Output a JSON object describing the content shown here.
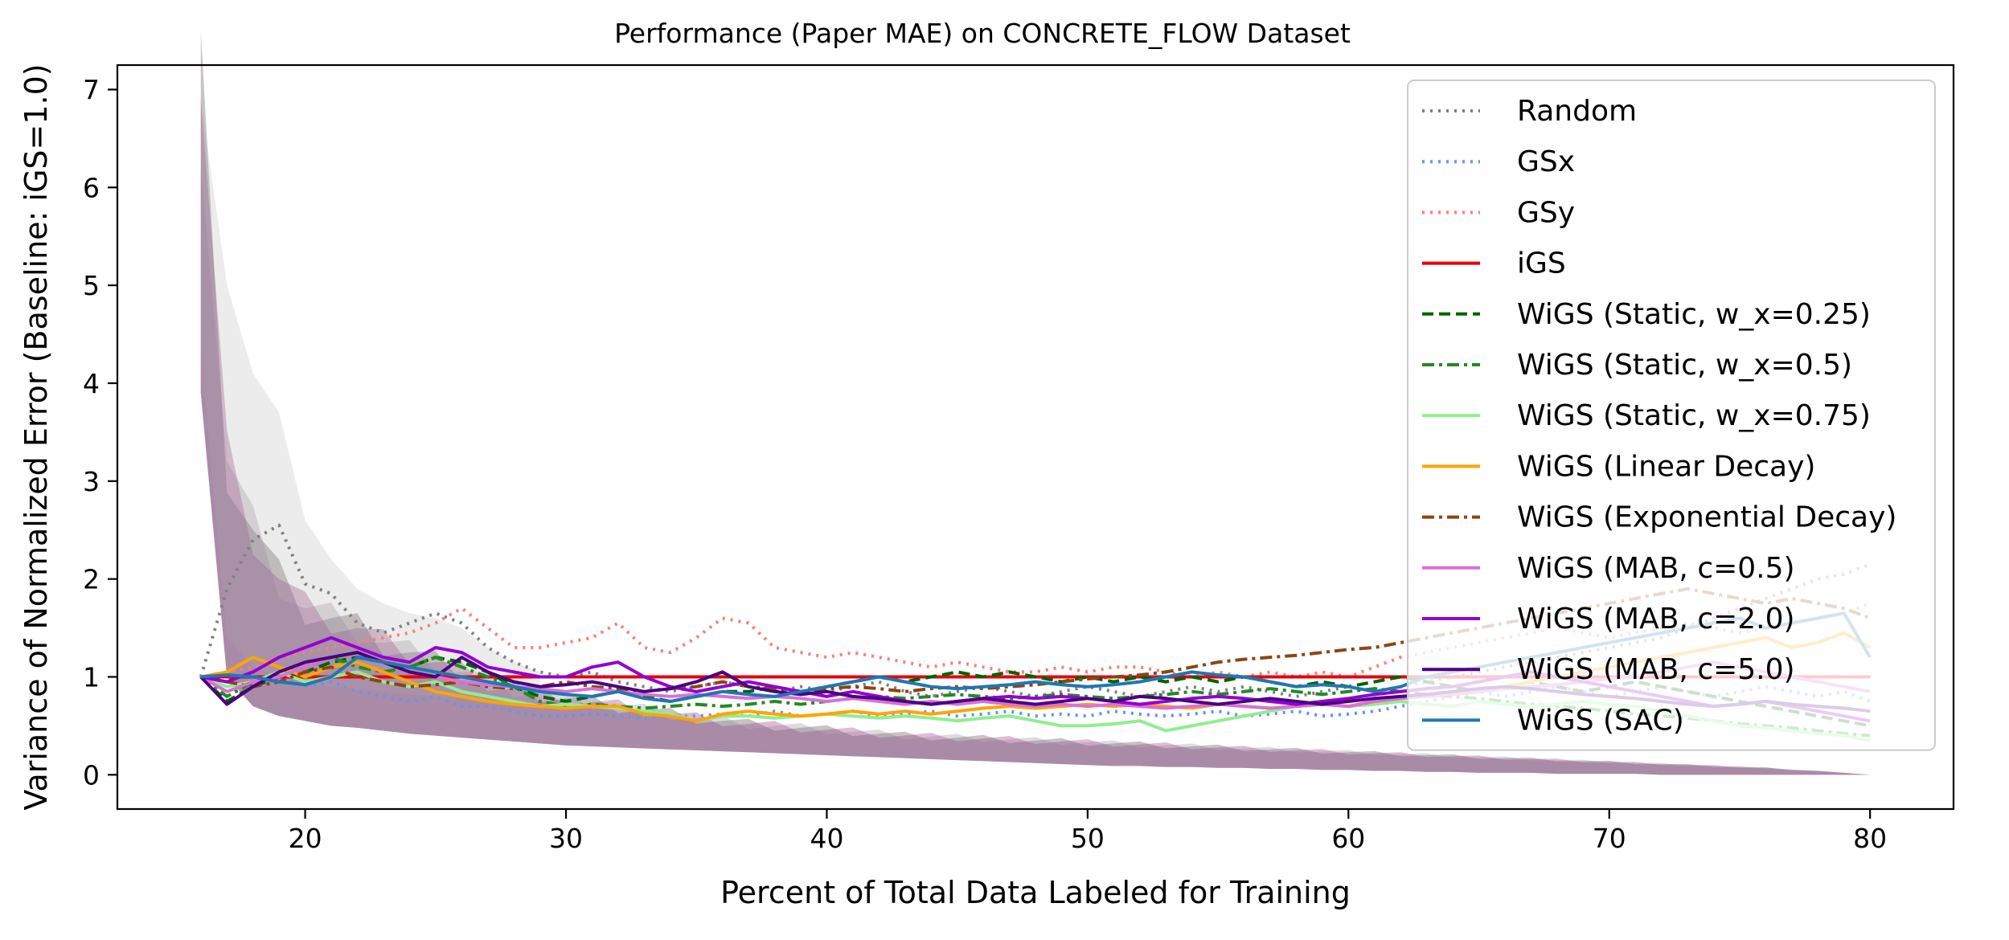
{
  "chart_data": {
    "type": "line",
    "title": "Performance (Paper MAE) on CONCRETE_FLOW Dataset",
    "xlabel": "Percent of Total Data Labeled for Training",
    "ylabel": "Variance of Normalized Error (Baseline: iGS=1.0)",
    "xlim": [
      12.8,
      83.2
    ],
    "ylim": [
      -0.35,
      7.25
    ],
    "xticks": [
      20,
      30,
      40,
      50,
      60,
      70,
      80
    ],
    "yticks": [
      0,
      1,
      2,
      3,
      4,
      5,
      6,
      7
    ],
    "grid": false,
    "legend_position": "upper right",
    "x": [
      16,
      17,
      18,
      19,
      20,
      21,
      22,
      23,
      24,
      25,
      26,
      27,
      28,
      29,
      30,
      31,
      32,
      33,
      34,
      35,
      36,
      37,
      38,
      39,
      40,
      41,
      42,
      43,
      44,
      45,
      46,
      47,
      48,
      49,
      50,
      51,
      52,
      53,
      54,
      55,
      56,
      57,
      58,
      59,
      60,
      61,
      62,
      63,
      64,
      65,
      66,
      67,
      68,
      69,
      70,
      71,
      72,
      73,
      74,
      75,
      76,
      77,
      78,
      79,
      80
    ],
    "series": [
      {
        "name": "Random",
        "color": "#808080",
        "style": "dotted",
        "values": [
          1.0,
          1.9,
          2.4,
          2.55,
          1.95,
          1.85,
          1.55,
          1.45,
          1.55,
          1.65,
          1.55,
          1.3,
          1.15,
          1.05,
          1.0,
          1.05,
          0.95,
          0.9,
          0.85,
          0.9,
          0.95,
          0.9,
          0.85,
          0.9,
          0.85,
          0.9,
          0.95,
          0.85,
          0.8,
          0.85,
          0.9,
          0.85,
          0.8,
          0.85,
          0.9,
          0.85,
          0.8,
          0.85,
          0.9,
          0.85,
          0.9,
          0.85,
          0.8,
          0.85,
          0.9,
          0.85,
          0.9,
          0.95,
          1.0,
          1.05,
          1.1,
          1.15,
          1.2,
          1.25,
          1.3,
          1.35,
          1.4,
          1.5,
          1.6,
          1.7,
          1.8,
          1.9,
          2.0,
          2.05,
          2.15
        ]
      },
      {
        "name": "GSx",
        "color": "#6495ed",
        "style": "dotted",
        "values": [
          1.0,
          0.85,
          0.95,
          1.0,
          0.9,
          0.95,
          0.85,
          0.8,
          0.75,
          0.8,
          0.7,
          0.7,
          0.65,
          0.6,
          0.6,
          0.62,
          0.6,
          0.58,
          0.6,
          0.6,
          0.62,
          0.6,
          0.65,
          0.6,
          0.62,
          0.65,
          0.6,
          0.62,
          0.65,
          0.6,
          0.62,
          0.65,
          0.6,
          0.62,
          0.6,
          0.65,
          0.62,
          0.6,
          0.62,
          0.65,
          0.6,
          0.62,
          0.65,
          0.6,
          0.62,
          0.65,
          0.7,
          0.75,
          0.8,
          0.85,
          0.8,
          0.85,
          0.9,
          0.85,
          0.8,
          0.85,
          0.9,
          0.85,
          0.8,
          0.85,
          0.9,
          0.85,
          0.8,
          0.85,
          0.75
        ]
      },
      {
        "name": "GSy",
        "color": "#fa8072",
        "style": "dotted",
        "values": [
          1.0,
          1.05,
          1.1,
          1.2,
          1.25,
          1.3,
          1.35,
          1.4,
          1.45,
          1.55,
          1.7,
          1.5,
          1.3,
          1.3,
          1.35,
          1.4,
          1.55,
          1.3,
          1.25,
          1.4,
          1.6,
          1.55,
          1.3,
          1.25,
          1.2,
          1.25,
          1.2,
          1.15,
          1.1,
          1.15,
          1.1,
          1.05,
          1.05,
          1.1,
          1.05,
          1.1,
          1.1,
          1.05,
          1.0,
          1.05,
          1.0,
          1.05,
          1.0,
          1.05,
          1.0,
          1.1,
          1.2,
          1.25,
          1.3,
          1.35,
          1.4,
          1.45,
          1.5,
          1.45,
          1.4,
          1.45,
          1.5,
          1.55,
          1.5,
          1.45,
          1.5,
          1.55,
          1.6,
          1.65,
          1.75
        ]
      },
      {
        "name": "iGS",
        "color": "#e8000b",
        "style": "solid",
        "values": [
          1.0,
          1.0,
          1.0,
          1.0,
          1.0,
          1.0,
          1.0,
          1.0,
          1.0,
          1.0,
          1.0,
          1.0,
          1.0,
          1.0,
          1.0,
          1.0,
          1.0,
          1.0,
          1.0,
          1.0,
          1.0,
          1.0,
          1.0,
          1.0,
          1.0,
          1.0,
          1.0,
          1.0,
          1.0,
          1.0,
          1.0,
          1.0,
          1.0,
          1.0,
          1.0,
          1.0,
          1.0,
          1.0,
          1.0,
          1.0,
          1.0,
          1.0,
          1.0,
          1.0,
          1.0,
          1.0,
          1.0,
          1.0,
          1.0,
          1.0,
          1.0,
          1.0,
          1.0,
          1.0,
          1.0,
          1.0,
          1.0,
          1.0,
          1.0,
          1.0,
          1.0,
          1.0,
          1.0,
          1.0,
          1.0
        ]
      },
      {
        "name": "WiGS (Static, w_x=0.25)",
        "color": "#006400",
        "style": "dashed",
        "values": [
          1.0,
          0.75,
          0.9,
          1.0,
          1.05,
          1.15,
          1.2,
          1.15,
          1.1,
          1.2,
          1.15,
          1.05,
          0.9,
          0.8,
          0.75,
          0.8,
          0.85,
          0.8,
          0.75,
          0.8,
          0.85,
          0.85,
          0.9,
          0.85,
          0.9,
          0.95,
          1.0,
          0.95,
          1.0,
          1.05,
          1.0,
          1.05,
          1.0,
          0.95,
          1.0,
          0.95,
          1.0,
          0.95,
          1.0,
          0.95,
          1.0,
          0.95,
          0.9,
          0.95,
          0.9,
          0.95,
          1.0,
          0.95,
          0.9,
          0.85,
          0.9,
          0.95,
          0.9,
          0.85,
          0.9,
          0.95,
          0.9,
          0.85,
          0.8,
          0.75,
          0.7,
          0.65,
          0.6,
          0.55,
          0.5
        ]
      },
      {
        "name": "WiGS (Static, w_x=0.5)",
        "color": "#228b22",
        "style": "dashdot",
        "values": [
          1.0,
          0.8,
          0.95,
          1.0,
          1.1,
          1.2,
          1.1,
          1.05,
          1.1,
          1.2,
          1.1,
          1.0,
          0.9,
          0.75,
          0.7,
          0.72,
          0.7,
          0.68,
          0.7,
          0.72,
          0.7,
          0.72,
          0.75,
          0.72,
          0.75,
          0.78,
          0.8,
          0.78,
          0.8,
          0.82,
          0.8,
          0.78,
          0.8,
          0.82,
          0.8,
          0.78,
          0.8,
          0.82,
          0.85,
          0.82,
          0.85,
          0.88,
          0.85,
          0.82,
          0.85,
          0.88,
          0.85,
          0.82,
          0.8,
          0.78,
          0.75,
          0.72,
          0.7,
          0.68,
          0.65,
          0.62,
          0.6,
          0.58,
          0.55,
          0.52,
          0.5,
          0.48,
          0.45,
          0.42,
          0.4
        ]
      },
      {
        "name": "WiGS (Static, w_x=0.75)",
        "color": "#90ee90",
        "style": "solid",
        "values": [
          1.0,
          0.9,
          0.95,
          1.05,
          0.95,
          1.0,
          1.05,
          0.95,
          0.9,
          0.95,
          0.85,
          0.8,
          0.75,
          0.7,
          0.72,
          0.7,
          0.68,
          0.65,
          0.62,
          0.55,
          0.6,
          0.6,
          0.58,
          0.6,
          0.62,
          0.6,
          0.58,
          0.6,
          0.58,
          0.55,
          0.58,
          0.6,
          0.55,
          0.5,
          0.5,
          0.52,
          0.55,
          0.45,
          0.5,
          0.55,
          0.6,
          0.65,
          0.7,
          0.72,
          0.7,
          0.72,
          0.75,
          0.72,
          0.7,
          0.75,
          0.72,
          0.7,
          0.72,
          0.75,
          0.72,
          0.7,
          0.65,
          0.6,
          0.55,
          0.5,
          0.48,
          0.45,
          0.42,
          0.4,
          0.35
        ]
      },
      {
        "name": "WiGS (Linear Decay)",
        "color": "#ffa500",
        "style": "solid",
        "values": [
          1.0,
          1.05,
          1.2,
          1.1,
          1.0,
          1.1,
          1.15,
          1.05,
          0.95,
          0.85,
          0.8,
          0.75,
          0.72,
          0.7,
          0.68,
          0.7,
          0.7,
          0.62,
          0.6,
          0.55,
          0.62,
          0.65,
          0.62,
          0.6,
          0.62,
          0.65,
          0.62,
          0.65,
          0.62,
          0.65,
          0.68,
          0.7,
          0.68,
          0.7,
          0.72,
          0.7,
          0.72,
          0.7,
          0.68,
          0.72,
          0.7,
          0.68,
          0.7,
          0.72,
          0.7,
          0.75,
          0.78,
          0.8,
          0.82,
          0.85,
          0.9,
          0.95,
          1.0,
          1.05,
          1.1,
          1.15,
          1.2,
          1.25,
          1.3,
          1.35,
          1.4,
          1.3,
          1.35,
          1.45,
          1.3
        ]
      },
      {
        "name": "WiGS (Exponential Decay)",
        "color": "#8b4513",
        "style": "dashdot",
        "values": [
          1.0,
          0.95,
          0.9,
          0.95,
          1.05,
          1.1,
          1.0,
          0.95,
          0.9,
          0.92,
          0.95,
          0.9,
          0.88,
          0.9,
          0.95,
          0.9,
          0.88,
          0.85,
          0.88,
          0.9,
          0.95,
          0.9,
          0.88,
          0.85,
          0.88,
          0.9,
          0.88,
          0.85,
          0.88,
          0.9,
          0.88,
          0.9,
          0.92,
          0.95,
          0.98,
          1.0,
          1.02,
          1.05,
          1.1,
          1.15,
          1.18,
          1.2,
          1.22,
          1.25,
          1.28,
          1.3,
          1.35,
          1.4,
          1.45,
          1.5,
          1.55,
          1.6,
          1.65,
          1.7,
          1.75,
          1.8,
          1.85,
          1.9,
          1.85,
          1.8,
          1.75,
          1.8,
          1.75,
          1.7,
          1.6
        ]
      },
      {
        "name": "WiGS (MAB, c=0.5)",
        "color": "#da70d6",
        "style": "solid",
        "values": [
          1.0,
          0.85,
          0.95,
          1.0,
          1.1,
          1.2,
          1.25,
          1.15,
          1.05,
          1.0,
          0.95,
          0.92,
          0.9,
          0.88,
          0.85,
          0.88,
          0.85,
          0.82,
          0.8,
          0.82,
          0.8,
          0.78,
          0.8,
          0.78,
          0.75,
          0.78,
          0.75,
          0.72,
          0.75,
          0.72,
          0.75,
          0.72,
          0.7,
          0.72,
          0.7,
          0.72,
          0.7,
          0.68,
          0.7,
          0.72,
          0.7,
          0.68,
          0.7,
          0.72,
          0.7,
          0.75,
          0.78,
          0.8,
          0.82,
          0.85,
          0.88,
          0.9,
          0.92,
          0.95,
          0.98,
          1.0,
          1.05,
          1.1,
          1.15,
          1.1,
          1.05,
          1.0,
          0.95,
          0.9,
          0.85
        ]
      },
      {
        "name": "WiGS (MAB, c=2.0)",
        "color": "#9400d3",
        "style": "solid",
        "values": [
          1.0,
          0.95,
          1.05,
          1.2,
          1.3,
          1.4,
          1.3,
          1.2,
          1.15,
          1.3,
          1.25,
          1.1,
          1.05,
          1.0,
          1.0,
          1.1,
          1.15,
          1.0,
          0.9,
          0.85,
          0.9,
          0.95,
          0.9,
          0.85,
          0.8,
          0.85,
          0.8,
          0.75,
          0.72,
          0.75,
          0.78,
          0.8,
          0.78,
          0.8,
          0.78,
          0.75,
          0.72,
          0.75,
          0.78,
          0.8,
          0.78,
          0.75,
          0.72,
          0.75,
          0.78,
          0.82,
          0.85,
          0.88,
          0.9,
          0.95,
          1.0,
          1.05,
          1.0,
          0.95,
          0.9,
          0.85,
          0.8,
          0.75,
          0.7,
          0.72,
          0.75,
          0.7,
          0.65,
          0.6,
          0.55
        ]
      },
      {
        "name": "WiGS (MAB, c=5.0)",
        "color": "#4b0082",
        "style": "solid",
        "values": [
          1.0,
          0.72,
          0.9,
          1.05,
          1.15,
          1.2,
          1.25,
          1.15,
          1.05,
          1.0,
          1.2,
          1.05,
          0.95,
          0.9,
          0.92,
          0.95,
          0.9,
          0.85,
          0.88,
          0.95,
          1.05,
          0.9,
          0.85,
          0.82,
          0.85,
          0.8,
          0.78,
          0.75,
          0.72,
          0.75,
          0.78,
          0.75,
          0.72,
          0.75,
          0.78,
          0.75,
          0.8,
          0.78,
          0.75,
          0.72,
          0.75,
          0.78,
          0.75,
          0.72,
          0.75,
          0.78,
          0.8,
          0.82,
          0.85,
          0.88,
          0.9,
          0.88,
          0.85,
          0.82,
          0.8,
          0.78,
          0.75,
          0.72,
          0.7,
          0.72,
          0.75,
          0.72,
          0.7,
          0.68,
          0.65
        ]
      },
      {
        "name": "WiGS (SAC)",
        "color": "#1f77b4",
        "style": "solid",
        "values": [
          1.0,
          1.02,
          1.0,
          0.95,
          0.92,
          1.0,
          1.2,
          1.15,
          1.1,
          1.05,
          1.0,
          0.95,
          0.9,
          0.85,
          0.82,
          0.8,
          0.85,
          0.78,
          0.75,
          0.8,
          0.85,
          0.82,
          0.8,
          0.85,
          0.9,
          0.95,
          1.0,
          0.95,
          0.9,
          0.88,
          0.9,
          0.92,
          0.95,
          0.92,
          0.9,
          0.92,
          0.95,
          1.0,
          1.05,
          1.02,
          1.0,
          0.95,
          0.9,
          0.92,
          0.9,
          0.85,
          0.9,
          1.0,
          1.05,
          1.1,
          1.15,
          1.2,
          1.25,
          1.3,
          1.35,
          1.4,
          1.45,
          1.5,
          1.55,
          1.6,
          1.5,
          1.55,
          1.6,
          1.65,
          1.2
        ]
      }
    ],
    "band": {
      "name": "variance bands",
      "upper": [
        6.9,
        3.2,
        2.5,
        2.0,
        1.7,
        1.6,
        1.5,
        1.35,
        1.25,
        1.15,
        1.05,
        0.95,
        0.88,
        0.82,
        0.78,
        0.74,
        0.7,
        0.66,
        0.62,
        0.58,
        0.55,
        0.52,
        0.5,
        0.48,
        0.46,
        0.44,
        0.42,
        0.4,
        0.39,
        0.38,
        0.37,
        0.36,
        0.35,
        0.34,
        0.33,
        0.32,
        0.31,
        0.3,
        0.29,
        0.28,
        0.27,
        0.26,
        0.25,
        0.24,
        0.23,
        0.22,
        0.21,
        0.2,
        0.19,
        0.18,
        0.17,
        0.16,
        0.15,
        0.14,
        0.13,
        0.12,
        0.11,
        0.1,
        0.09,
        0.08,
        0.07,
        0.05,
        0.04,
        0.02,
        0.0
      ],
      "lower": [
        3.9,
        1.0,
        0.7,
        0.6,
        0.55,
        0.5,
        0.48,
        0.45,
        0.42,
        0.4,
        0.38,
        0.36,
        0.34,
        0.32,
        0.3,
        0.29,
        0.28,
        0.27,
        0.26,
        0.25,
        0.24,
        0.23,
        0.22,
        0.21,
        0.2,
        0.19,
        0.18,
        0.17,
        0.16,
        0.15,
        0.14,
        0.13,
        0.12,
        0.11,
        0.1,
        0.09,
        0.09,
        0.08,
        0.08,
        0.07,
        0.07,
        0.06,
        0.06,
        0.05,
        0.05,
        0.04,
        0.04,
        0.03,
        0.03,
        0.02,
        0.02,
        0.02,
        0.01,
        0.01,
        0.01,
        0.01,
        0.0,
        0.0,
        0.0,
        0.0,
        0.0,
        0.0,
        0.0,
        0.0,
        0.0
      ],
      "random_upper": [
        6.9,
        5.0,
        4.1,
        3.7,
        2.6,
        2.2,
        1.9,
        1.75,
        1.65,
        1.6,
        1.5,
        1.3,
        1.15,
        1.05
      ]
    }
  }
}
